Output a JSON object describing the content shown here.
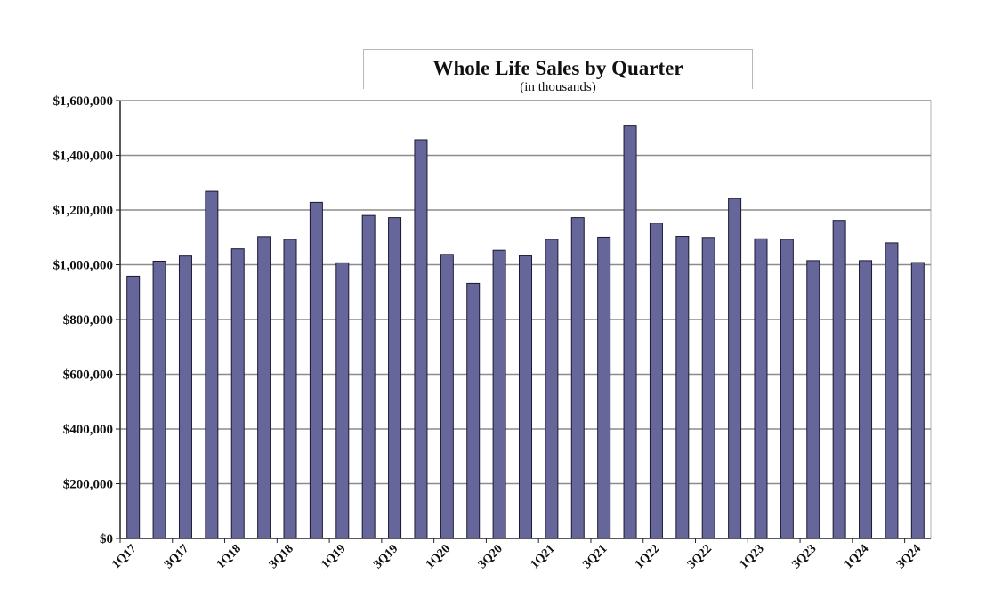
{
  "chart_data": {
    "type": "bar",
    "title": "Whole Life Sales by Quarter",
    "subtitle": "(in thousands)",
    "xlabel": "",
    "ylabel": "",
    "ylim": [
      0,
      1600000
    ],
    "yticks": [
      0,
      200000,
      400000,
      600000,
      800000,
      1000000,
      1200000,
      1400000,
      1600000
    ],
    "ytick_labels": [
      "$0",
      "$200,000",
      "$400,000",
      "$600,000",
      "$800,000",
      "$1,000,000",
      "$1,200,000",
      "$1,400,000",
      "$1,600,000"
    ],
    "categories": [
      "1Q17",
      "2Q17",
      "3Q17",
      "4Q17",
      "1Q18",
      "2Q18",
      "3Q18",
      "4Q18",
      "1Q19",
      "2Q19",
      "3Q19",
      "4Q19",
      "1Q20",
      "2Q20",
      "3Q20",
      "4Q20",
      "1Q21",
      "2Q21",
      "3Q21",
      "4Q21",
      "1Q22",
      "2Q22",
      "3Q22",
      "4Q22",
      "1Q23",
      "2Q23",
      "3Q23",
      "4Q23",
      "1Q24",
      "2Q24",
      "3Q24"
    ],
    "xtick_labels": [
      "1Q17",
      "3Q17",
      "1Q18",
      "3Q18",
      "1Q19",
      "3Q19",
      "1Q20",
      "3Q20",
      "1Q21",
      "3Q21",
      "1Q22",
      "3Q22",
      "1Q23",
      "3Q23",
      "1Q24",
      "3Q24"
    ],
    "values": [
      958000,
      1013000,
      1032000,
      1268000,
      1058000,
      1103000,
      1093000,
      1228000,
      1007000,
      1180000,
      1172000,
      1457000,
      1038000,
      932000,
      1053000,
      1033000,
      1093000,
      1172000,
      1101000,
      1507000,
      1152000,
      1104000,
      1100000,
      1242000,
      1095000,
      1093000,
      1015000,
      1162000,
      1015000,
      1080000,
      1008000
    ],
    "grid": true,
    "legend": "none",
    "colors": {
      "bar": "#66669a",
      "bar_edge": "#1a1a33",
      "grid": "#8c8c8c",
      "axis": "#222222"
    }
  }
}
